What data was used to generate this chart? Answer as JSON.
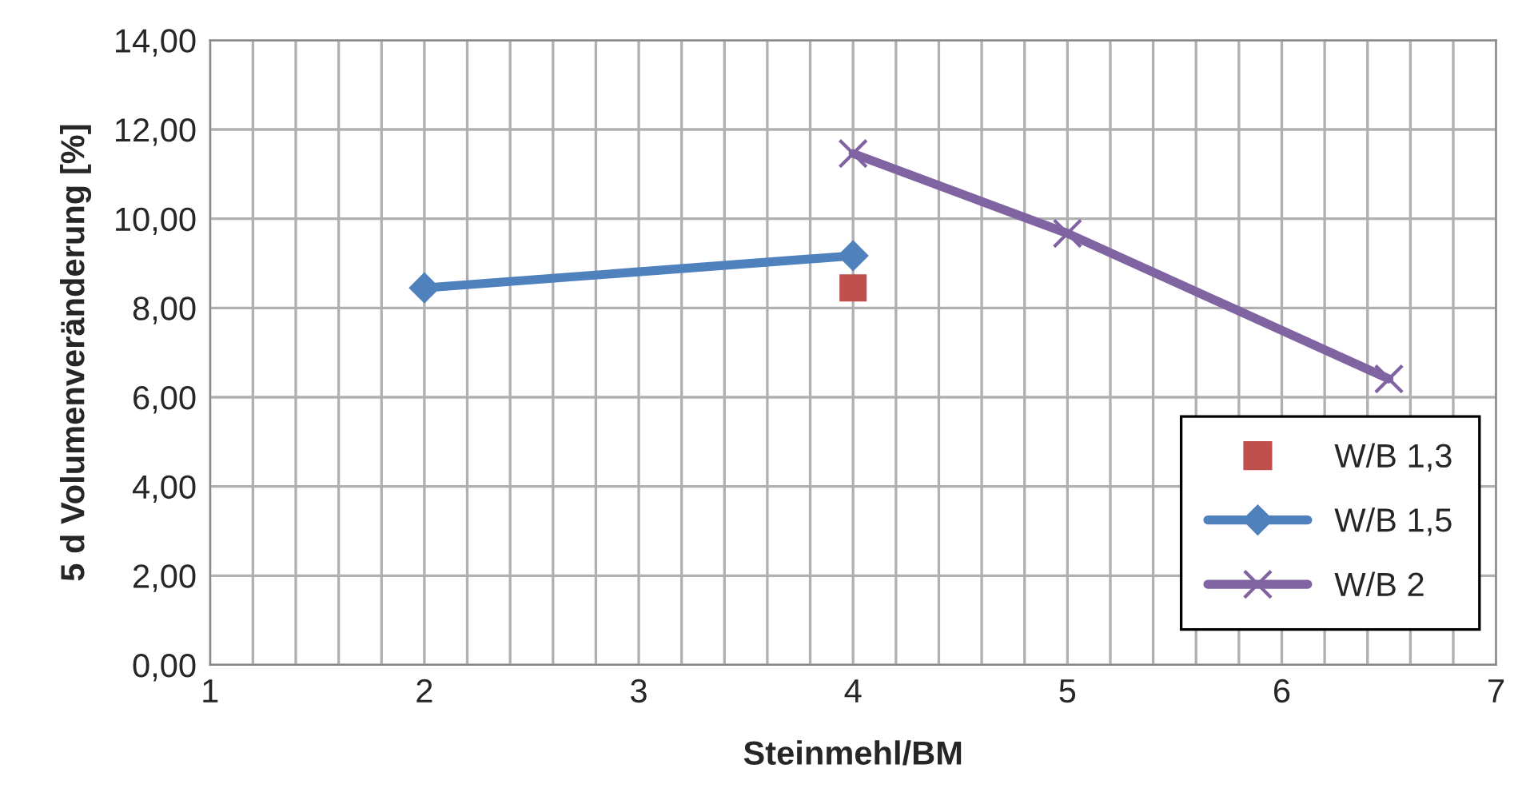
{
  "chart_data": {
    "type": "line",
    "xlabel": "Steinmehl/BM",
    "ylabel": "5 d Volumenveränderung [%]",
    "xlim": [
      1,
      7
    ],
    "ylim": [
      0,
      14
    ],
    "xticks": [
      1,
      {
        "value": 1.2,
        "label": null
      },
      {
        "value": 1.4,
        "label": null
      },
      {
        "value": 1.6,
        "label": null
      },
      {
        "value": 1.8,
        "label": null
      },
      2,
      {
        "value": 2.2,
        "label": null
      },
      {
        "value": 2.4,
        "label": null
      },
      {
        "value": 2.6,
        "label": null
      },
      {
        "value": 2.8,
        "label": null
      },
      3,
      {
        "value": 3.2,
        "label": null
      },
      {
        "value": 3.4,
        "label": null
      },
      {
        "value": 3.6,
        "label": null
      },
      {
        "value": 3.8,
        "label": null
      },
      4,
      {
        "value": 4.2,
        "label": null
      },
      {
        "value": 4.4,
        "label": null
      },
      {
        "value": 4.6,
        "label": null
      },
      {
        "value": 4.8,
        "label": null
      },
      5,
      {
        "value": 5.2,
        "label": null
      },
      {
        "value": 5.4,
        "label": null
      },
      {
        "value": 5.6,
        "label": null
      },
      {
        "value": 5.8,
        "label": null
      },
      6,
      {
        "value": 6.2,
        "label": null
      },
      {
        "value": 6.4,
        "label": null
      },
      {
        "value": 6.6,
        "label": null
      },
      {
        "value": 6.8,
        "label": null
      },
      7
    ],
    "yticks": [
      {
        "value": 0,
        "label": "0,00"
      },
      {
        "value": 2,
        "label": "2,00"
      },
      {
        "value": 4,
        "label": "4,00"
      },
      {
        "value": 6,
        "label": "6,00"
      },
      {
        "value": 8,
        "label": "8,00"
      },
      {
        "value": 10,
        "label": "10,00"
      },
      {
        "value": 12,
        "label": "12,00"
      },
      {
        "value": 14,
        "label": "14,00"
      }
    ],
    "grid": true,
    "legend": "bottom right",
    "series": [
      {
        "name": "W/B 1,3",
        "type": "scatter",
        "marker": "square",
        "color": "#c0504d",
        "x": [
          4
        ],
        "values": [
          8.45
        ]
      },
      {
        "name": "W/B 1,5",
        "marker": "diamond",
        "color": "#4f81bd",
        "x": [
          2,
          4
        ],
        "values": [
          8.45,
          9.17
        ]
      },
      {
        "name": "W/B 2",
        "marker": "cross",
        "color": "#8064a2",
        "x": [
          4,
          5,
          6.5
        ],
        "values": [
          11.46,
          9.67,
          6.41
        ]
      }
    ]
  }
}
